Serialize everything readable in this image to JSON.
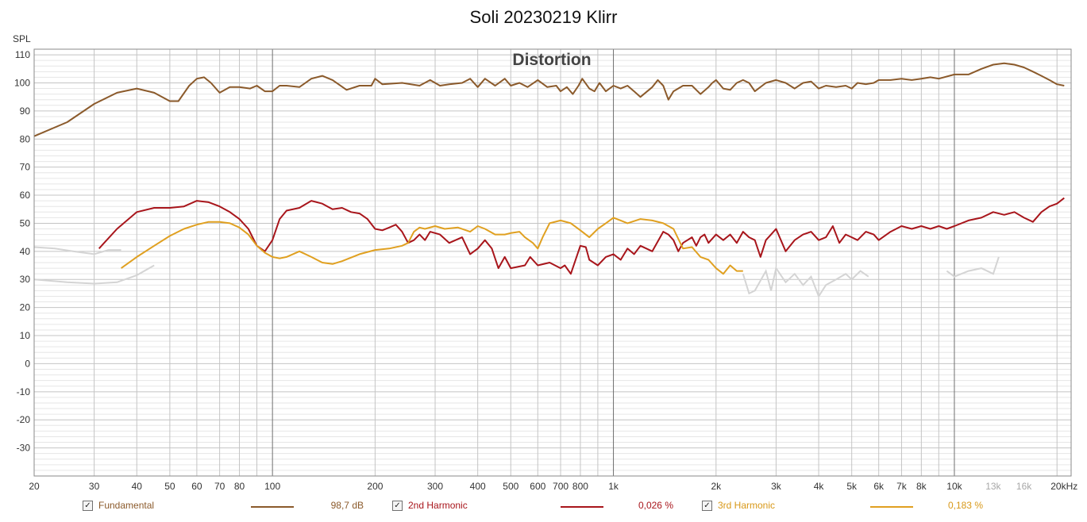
{
  "chart_data": {
    "type": "line",
    "title": "Soli 20230219 Klirr",
    "subtitle": "Distortion",
    "ylabel": "SPL",
    "ylim": [
      -40,
      112
    ],
    "xlim": [
      20,
      22000
    ],
    "xscale": "log",
    "grid": true,
    "legend_position": "bottom",
    "y_ticks": [
      "110",
      "100",
      "90",
      "80",
      "70",
      "60",
      "50",
      "40",
      "30",
      "20",
      "10",
      "0",
      "-10",
      "-20",
      "-30"
    ],
    "x_ticks": [
      {
        "v": 20,
        "label": "20"
      },
      {
        "v": 30,
        "label": "30"
      },
      {
        "v": 40,
        "label": "40"
      },
      {
        "v": 50,
        "label": "50"
      },
      {
        "v": 60,
        "label": "60"
      },
      {
        "v": 70,
        "label": "70"
      },
      {
        "v": 80,
        "label": "80"
      },
      {
        "v": 100,
        "label": "100"
      },
      {
        "v": 200,
        "label": "200"
      },
      {
        "v": 300,
        "label": "300"
      },
      {
        "v": 400,
        "label": "400"
      },
      {
        "v": 500,
        "label": "500"
      },
      {
        "v": 600,
        "label": "600"
      },
      {
        "v": 700,
        "label": "700"
      },
      {
        "v": 800,
        "label": "800"
      },
      {
        "v": 1000,
        "label": "1k"
      },
      {
        "v": 2000,
        "label": "2k"
      },
      {
        "v": 3000,
        "label": "3k"
      },
      {
        "v": 4000,
        "label": "4k"
      },
      {
        "v": 5000,
        "label": "5k"
      },
      {
        "v": 6000,
        "label": "6k"
      },
      {
        "v": 7000,
        "label": "7k"
      },
      {
        "v": 8000,
        "label": "8k"
      },
      {
        "v": 10000,
        "label": "10k"
      },
      {
        "v": 13000,
        "label": "13k",
        "faint": true
      },
      {
        "v": 16000,
        "label": "16k",
        "faint": true
      },
      {
        "v": 20000,
        "label": "20kHz"
      }
    ],
    "series": [
      {
        "name": "Fundamental",
        "legend_value": "98,7 dB",
        "color": "#8b5a2b",
        "points": [
          [
            20,
            81
          ],
          [
            25,
            86
          ],
          [
            30,
            92.5
          ],
          [
            35,
            96.5
          ],
          [
            40,
            98
          ],
          [
            45,
            96.5
          ],
          [
            50,
            93.5
          ],
          [
            53,
            93.5
          ],
          [
            57,
            99
          ],
          [
            60,
            101.5
          ],
          [
            63,
            102
          ],
          [
            66,
            100
          ],
          [
            70,
            96.5
          ],
          [
            75,
            98.5
          ],
          [
            80,
            98.5
          ],
          [
            86,
            98
          ],
          [
            90,
            99
          ],
          [
            95,
            97
          ],
          [
            100,
            97
          ],
          [
            105,
            99
          ],
          [
            110,
            99
          ],
          [
            120,
            98.5
          ],
          [
            130,
            101.5
          ],
          [
            140,
            102.5
          ],
          [
            150,
            101
          ],
          [
            165,
            97.5
          ],
          [
            180,
            99
          ],
          [
            195,
            99
          ],
          [
            200,
            101.5
          ],
          [
            210,
            99.5
          ],
          [
            240,
            100
          ],
          [
            270,
            99
          ],
          [
            290,
            101
          ],
          [
            310,
            99
          ],
          [
            330,
            99.5
          ],
          [
            360,
            100
          ],
          [
            380,
            101.5
          ],
          [
            400,
            98.5
          ],
          [
            420,
            101.5
          ],
          [
            450,
            99
          ],
          [
            480,
            101.5
          ],
          [
            500,
            99
          ],
          [
            530,
            100
          ],
          [
            560,
            98.5
          ],
          [
            600,
            101
          ],
          [
            640,
            98.5
          ],
          [
            680,
            99
          ],
          [
            700,
            97
          ],
          [
            730,
            98.5
          ],
          [
            760,
            96
          ],
          [
            790,
            99
          ],
          [
            810,
            101.5
          ],
          [
            850,
            98
          ],
          [
            880,
            97
          ],
          [
            910,
            100
          ],
          [
            950,
            97
          ],
          [
            1000,
            99
          ],
          [
            1050,
            98
          ],
          [
            1100,
            99
          ],
          [
            1150,
            97
          ],
          [
            1200,
            95
          ],
          [
            1300,
            98.5
          ],
          [
            1350,
            101
          ],
          [
            1400,
            99
          ],
          [
            1450,
            94
          ],
          [
            1500,
            97
          ],
          [
            1600,
            99
          ],
          [
            1700,
            99
          ],
          [
            1800,
            96
          ],
          [
            1900,
            98.5
          ],
          [
            1950,
            100
          ],
          [
            2000,
            101
          ],
          [
            2100,
            98
          ],
          [
            2200,
            97.5
          ],
          [
            2300,
            100
          ],
          [
            2400,
            101
          ],
          [
            2500,
            100
          ],
          [
            2600,
            97
          ],
          [
            2800,
            100
          ],
          [
            3000,
            101
          ],
          [
            3200,
            100
          ],
          [
            3400,
            98
          ],
          [
            3600,
            100
          ],
          [
            3800,
            100.5
          ],
          [
            4000,
            98
          ],
          [
            4200,
            99
          ],
          [
            4500,
            98.5
          ],
          [
            4800,
            99
          ],
          [
            5000,
            98
          ],
          [
            5200,
            100
          ],
          [
            5500,
            99.5
          ],
          [
            5800,
            100
          ],
          [
            6000,
            101
          ],
          [
            6500,
            101
          ],
          [
            7000,
            101.5
          ],
          [
            7500,
            101
          ],
          [
            8000,
            101.5
          ],
          [
            8500,
            102
          ],
          [
            9000,
            101.5
          ],
          [
            10000,
            103
          ],
          [
            11000,
            103
          ],
          [
            12000,
            105
          ],
          [
            13000,
            106.5
          ],
          [
            14000,
            107
          ],
          [
            15000,
            106.5
          ],
          [
            16000,
            105.5
          ],
          [
            17000,
            104
          ],
          [
            18000,
            102.5
          ],
          [
            19000,
            101
          ],
          [
            20000,
            99.5
          ],
          [
            21000,
            99
          ]
        ]
      },
      {
        "name": "2nd Harmonic",
        "legend_value": "0,026 %",
        "color": "#a8151b",
        "points": [
          [
            31,
            41
          ],
          [
            35,
            48
          ],
          [
            40,
            54
          ],
          [
            45,
            55.5
          ],
          [
            50,
            55.5
          ],
          [
            55,
            56
          ],
          [
            60,
            58
          ],
          [
            65,
            57.5
          ],
          [
            70,
            56
          ],
          [
            75,
            54
          ],
          [
            80,
            51.5
          ],
          [
            85,
            48
          ],
          [
            90,
            42
          ],
          [
            95,
            40
          ],
          [
            100,
            44
          ],
          [
            105,
            51.5
          ],
          [
            110,
            54.5
          ],
          [
            120,
            55.5
          ],
          [
            130,
            58
          ],
          [
            140,
            57
          ],
          [
            150,
            55
          ],
          [
            160,
            55.5
          ],
          [
            170,
            54
          ],
          [
            180,
            53.5
          ],
          [
            190,
            51.5
          ],
          [
            200,
            48
          ],
          [
            210,
            47.5
          ],
          [
            220,
            48.5
          ],
          [
            230,
            49.5
          ],
          [
            240,
            47
          ],
          [
            250,
            43
          ],
          [
            260,
            44
          ],
          [
            270,
            46
          ],
          [
            280,
            44
          ],
          [
            290,
            47
          ],
          [
            310,
            46
          ],
          [
            330,
            43
          ],
          [
            360,
            45
          ],
          [
            380,
            39
          ],
          [
            400,
            41
          ],
          [
            420,
            44
          ],
          [
            440,
            41
          ],
          [
            460,
            34
          ],
          [
            480,
            38
          ],
          [
            500,
            34
          ],
          [
            550,
            35
          ],
          [
            570,
            38
          ],
          [
            600,
            35
          ],
          [
            650,
            36
          ],
          [
            700,
            34
          ],
          [
            720,
            35
          ],
          [
            750,
            32
          ],
          [
            800,
            42
          ],
          [
            830,
            41.5
          ],
          [
            850,
            37
          ],
          [
            900,
            35
          ],
          [
            950,
            38
          ],
          [
            1000,
            39
          ],
          [
            1050,
            37
          ],
          [
            1100,
            41
          ],
          [
            1150,
            39
          ],
          [
            1200,
            42
          ],
          [
            1300,
            40
          ],
          [
            1400,
            47
          ],
          [
            1450,
            46
          ],
          [
            1500,
            44
          ],
          [
            1550,
            40
          ],
          [
            1600,
            43
          ],
          [
            1700,
            45
          ],
          [
            1750,
            42
          ],
          [
            1800,
            45
          ],
          [
            1850,
            46
          ],
          [
            1900,
            43
          ],
          [
            2000,
            46
          ],
          [
            2100,
            44
          ],
          [
            2200,
            46
          ],
          [
            2300,
            43
          ],
          [
            2400,
            47
          ],
          [
            2500,
            45
          ],
          [
            2600,
            44
          ],
          [
            2700,
            38
          ],
          [
            2800,
            44
          ],
          [
            2900,
            46
          ],
          [
            3000,
            48
          ],
          [
            3200,
            40
          ],
          [
            3400,
            44
          ],
          [
            3600,
            46
          ],
          [
            3800,
            47
          ],
          [
            4000,
            44
          ],
          [
            4200,
            45
          ],
          [
            4400,
            49
          ],
          [
            4600,
            43
          ],
          [
            4800,
            46
          ],
          [
            5000,
            45
          ],
          [
            5200,
            44
          ],
          [
            5500,
            47
          ],
          [
            5800,
            46
          ],
          [
            6000,
            44
          ],
          [
            6500,
            47
          ],
          [
            7000,
            49
          ],
          [
            7500,
            48
          ],
          [
            8000,
            49
          ],
          [
            8500,
            48
          ],
          [
            9000,
            49
          ],
          [
            9500,
            48
          ],
          [
            10000,
            49
          ],
          [
            11000,
            51
          ],
          [
            12000,
            52
          ],
          [
            13000,
            54
          ],
          [
            14000,
            53
          ],
          [
            15000,
            54
          ],
          [
            16000,
            52
          ],
          [
            17000,
            50.5
          ],
          [
            18000,
            54
          ],
          [
            19000,
            56
          ],
          [
            20000,
            57
          ],
          [
            21000,
            59
          ]
        ]
      },
      {
        "name": "3rd Harmonic",
        "legend_value": "0,183 %",
        "color": "#e0a020",
        "points": [
          [
            36,
            34
          ],
          [
            40,
            38
          ],
          [
            45,
            42
          ],
          [
            50,
            45.5
          ],
          [
            55,
            48
          ],
          [
            60,
            49.5
          ],
          [
            65,
            50.5
          ],
          [
            70,
            50.5
          ],
          [
            75,
            50
          ],
          [
            80,
            48.5
          ],
          [
            85,
            46
          ],
          [
            90,
            42
          ],
          [
            95,
            39.5
          ],
          [
            100,
            38
          ],
          [
            105,
            37.5
          ],
          [
            110,
            38
          ],
          [
            120,
            40
          ],
          [
            130,
            38
          ],
          [
            140,
            36
          ],
          [
            150,
            35.5
          ],
          [
            160,
            36.5
          ],
          [
            180,
            39
          ],
          [
            200,
            40.5
          ],
          [
            220,
            41
          ],
          [
            240,
            42
          ],
          [
            250,
            43
          ],
          [
            260,
            47
          ],
          [
            270,
            48.5
          ],
          [
            280,
            48
          ],
          [
            300,
            49
          ],
          [
            320,
            48
          ],
          [
            350,
            48.5
          ],
          [
            380,
            47
          ],
          [
            400,
            49
          ],
          [
            420,
            48
          ],
          [
            450,
            46
          ],
          [
            480,
            46
          ],
          [
            500,
            46.5
          ],
          [
            530,
            47
          ],
          [
            550,
            45
          ],
          [
            580,
            43
          ],
          [
            600,
            41
          ],
          [
            620,
            45
          ],
          [
            650,
            50
          ],
          [
            700,
            51
          ],
          [
            750,
            50
          ],
          [
            800,
            47.5
          ],
          [
            850,
            45
          ],
          [
            900,
            48
          ],
          [
            950,
            50
          ],
          [
            1000,
            52
          ],
          [
            1050,
            51
          ],
          [
            1100,
            50
          ],
          [
            1200,
            51.5
          ],
          [
            1300,
            51
          ],
          [
            1400,
            50
          ],
          [
            1500,
            48
          ],
          [
            1600,
            41
          ],
          [
            1700,
            41.5
          ],
          [
            1800,
            38
          ],
          [
            1900,
            37
          ],
          [
            2000,
            34
          ],
          [
            2100,
            32
          ],
          [
            2200,
            35
          ],
          [
            2300,
            33
          ],
          [
            2400,
            33
          ]
        ]
      }
    ]
  },
  "legend": [
    {
      "name": "Fundamental",
      "value": "98,7 dB"
    },
    {
      "name": "2nd Harmonic",
      "value": "0,026 %"
    },
    {
      "name": "3rd Harmonic",
      "value": "0,183 %"
    }
  ]
}
